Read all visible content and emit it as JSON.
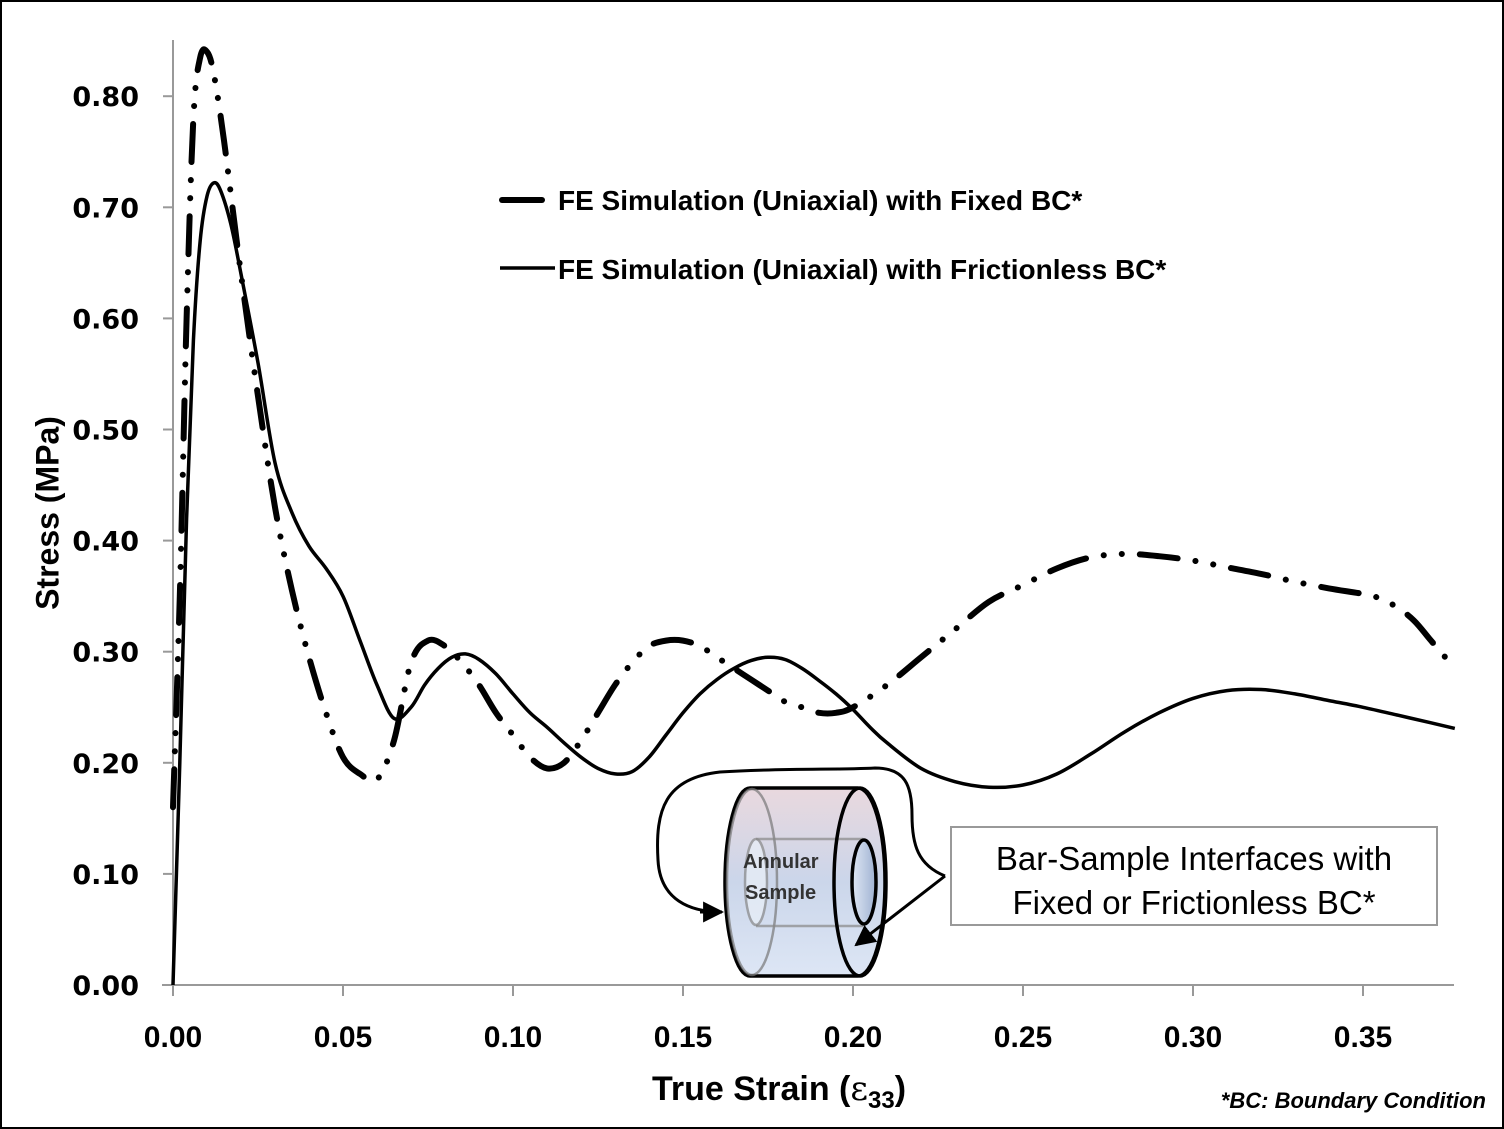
{
  "chart_data": {
    "type": "line",
    "title": "",
    "xlabel": "True Strain (ε33)",
    "xlabel_main": "True Strain (",
    "xlabel_symbol": "ε",
    "xlabel_subscript": "33",
    "xlabel_close": ")",
    "ylabel": "Stress (MPa)",
    "xlim": [
      0,
      0.377
    ],
    "ylim": [
      0,
      0.85
    ],
    "x_ticks": [
      "0.00",
      "0.05",
      "0.10",
      "0.15",
      "0.20",
      "0.25",
      "0.30",
      "0.35"
    ],
    "x_tick_values": [
      0,
      0.05,
      0.1,
      0.15,
      0.2,
      0.25,
      0.3,
      0.35
    ],
    "y_ticks": [
      "0.00",
      "0.10",
      "0.20",
      "0.30",
      "0.40",
      "0.50",
      "0.60",
      "0.70",
      "0.80"
    ],
    "y_tick_values": [
      0,
      0.1,
      0.2,
      0.3,
      0.4,
      0.5,
      0.6,
      0.7,
      0.8
    ],
    "grid": false,
    "legend_position": "top-center",
    "series": [
      {
        "name": "FE Simulation (Uniaxial) with Fixed BC*",
        "style": "dash-dot-dot",
        "color": "#000000",
        "x": [
          0.0,
          0.002,
          0.004,
          0.006,
          0.008,
          0.01,
          0.012,
          0.015,
          0.02,
          0.025,
          0.03,
          0.035,
          0.04,
          0.045,
          0.05,
          0.055,
          0.06,
          0.065,
          0.07,
          0.075,
          0.08,
          0.085,
          0.09,
          0.095,
          0.1,
          0.105,
          0.11,
          0.115,
          0.12,
          0.125,
          0.13,
          0.135,
          0.14,
          0.145,
          0.15,
          0.155,
          0.16,
          0.165,
          0.17,
          0.175,
          0.18,
          0.185,
          0.19,
          0.195,
          0.2,
          0.21,
          0.22,
          0.23,
          0.24,
          0.25,
          0.26,
          0.27,
          0.28,
          0.29,
          0.3,
          0.31,
          0.32,
          0.33,
          0.34,
          0.35,
          0.355,
          0.36,
          0.365,
          0.37,
          0.377
        ],
        "y": [
          0.16,
          0.35,
          0.6,
          0.78,
          0.835,
          0.84,
          0.82,
          0.76,
          0.64,
          0.53,
          0.43,
          0.355,
          0.295,
          0.245,
          0.205,
          0.19,
          0.185,
          0.22,
          0.29,
          0.31,
          0.305,
          0.29,
          0.27,
          0.245,
          0.225,
          0.205,
          0.195,
          0.2,
          0.22,
          0.245,
          0.27,
          0.29,
          0.305,
          0.31,
          0.31,
          0.305,
          0.295,
          0.285,
          0.275,
          0.265,
          0.255,
          0.25,
          0.245,
          0.245,
          0.25,
          0.27,
          0.295,
          0.32,
          0.345,
          0.36,
          0.375,
          0.385,
          0.388,
          0.386,
          0.382,
          0.376,
          0.37,
          0.363,
          0.357,
          0.352,
          0.348,
          0.34,
          0.328,
          0.31,
          0.285
        ]
      },
      {
        "name": "FE Simulation (Uniaxial) with Frictionless BC*",
        "style": "solid",
        "color": "#000000",
        "x": [
          0.0,
          0.002,
          0.004,
          0.006,
          0.008,
          0.01,
          0.012,
          0.014,
          0.017,
          0.02,
          0.025,
          0.03,
          0.035,
          0.04,
          0.045,
          0.05,
          0.055,
          0.06,
          0.065,
          0.07,
          0.074,
          0.078,
          0.082,
          0.086,
          0.09,
          0.095,
          0.1,
          0.105,
          0.11,
          0.115,
          0.12,
          0.125,
          0.13,
          0.135,
          0.14,
          0.145,
          0.15,
          0.155,
          0.16,
          0.165,
          0.17,
          0.175,
          0.18,
          0.185,
          0.19,
          0.195,
          0.2,
          0.205,
          0.21,
          0.22,
          0.23,
          0.24,
          0.25,
          0.26,
          0.27,
          0.28,
          0.29,
          0.3,
          0.31,
          0.32,
          0.33,
          0.34,
          0.35,
          0.36,
          0.37,
          0.377
        ],
        "y": [
          0.0,
          0.2,
          0.42,
          0.58,
          0.67,
          0.71,
          0.722,
          0.715,
          0.685,
          0.64,
          0.56,
          0.47,
          0.425,
          0.395,
          0.375,
          0.35,
          0.31,
          0.27,
          0.24,
          0.25,
          0.27,
          0.285,
          0.295,
          0.298,
          0.293,
          0.28,
          0.262,
          0.245,
          0.232,
          0.218,
          0.205,
          0.195,
          0.19,
          0.192,
          0.205,
          0.225,
          0.245,
          0.262,
          0.275,
          0.285,
          0.292,
          0.295,
          0.293,
          0.285,
          0.274,
          0.262,
          0.248,
          0.232,
          0.218,
          0.195,
          0.183,
          0.178,
          0.18,
          0.19,
          0.208,
          0.228,
          0.245,
          0.258,
          0.265,
          0.266,
          0.262,
          0.256,
          0.25,
          0.243,
          0.236,
          0.231
        ]
      }
    ],
    "annotations": {
      "footnote": "*BC: Boundary Condition",
      "callout_line1": "Bar-Sample Interfaces with",
      "callout_line2": "Fixed or Frictionless BC*",
      "sample_label_line1": "Annular",
      "sample_label_line2": "Sample"
    }
  }
}
